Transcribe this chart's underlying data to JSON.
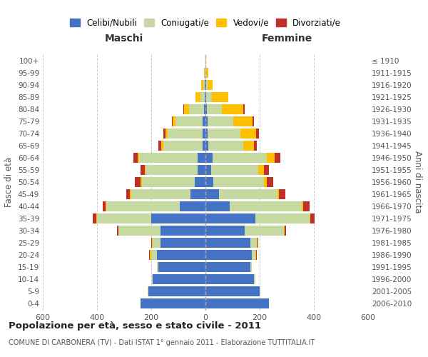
{
  "age_groups": [
    "0-4",
    "5-9",
    "10-14",
    "15-19",
    "20-24",
    "25-29",
    "30-34",
    "35-39",
    "40-44",
    "45-49",
    "50-54",
    "55-59",
    "60-64",
    "65-69",
    "70-74",
    "75-79",
    "80-84",
    "85-89",
    "90-94",
    "95-99",
    "100+"
  ],
  "birth_years": [
    "2006-2010",
    "2001-2005",
    "1996-2000",
    "1991-1995",
    "1986-1990",
    "1981-1985",
    "1976-1980",
    "1971-1975",
    "1966-1970",
    "1961-1965",
    "1956-1960",
    "1951-1955",
    "1946-1950",
    "1941-1945",
    "1936-1940",
    "1931-1935",
    "1926-1930",
    "1921-1925",
    "1916-1920",
    "1911-1915",
    "≤ 1910"
  ],
  "maschi": {
    "celibi": [
      240,
      210,
      195,
      175,
      180,
      165,
      165,
      200,
      95,
      55,
      40,
      30,
      30,
      10,
      10,
      10,
      5,
      3,
      2,
      1,
      0
    ],
    "coniugati": [
      0,
      2,
      3,
      5,
      20,
      30,
      155,
      200,
      270,
      220,
      195,
      190,
      215,
      145,
      130,
      100,
      55,
      15,
      5,
      2,
      0
    ],
    "vedovi": [
      0,
      0,
      0,
      0,
      5,
      3,
      2,
      3,
      3,
      3,
      5,
      5,
      5,
      8,
      8,
      10,
      20,
      20,
      8,
      3,
      0
    ],
    "divorziati": [
      0,
      0,
      0,
      0,
      3,
      3,
      5,
      12,
      12,
      15,
      20,
      15,
      15,
      10,
      8,
      5,
      2,
      0,
      0,
      0,
      0
    ]
  },
  "femmine": {
    "nubili": [
      235,
      200,
      180,
      165,
      170,
      165,
      145,
      185,
      90,
      50,
      30,
      20,
      25,
      10,
      8,
      8,
      5,
      3,
      2,
      1,
      0
    ],
    "coniugate": [
      0,
      2,
      3,
      5,
      15,
      25,
      145,
      200,
      265,
      215,
      185,
      175,
      200,
      130,
      120,
      95,
      55,
      20,
      5,
      2,
      0
    ],
    "vedove": [
      0,
      0,
      0,
      0,
      2,
      2,
      2,
      3,
      5,
      5,
      10,
      20,
      30,
      40,
      60,
      70,
      80,
      60,
      20,
      8,
      2
    ],
    "divorziate": [
      0,
      0,
      0,
      0,
      3,
      3,
      5,
      15,
      25,
      25,
      25,
      20,
      20,
      10,
      10,
      5,
      5,
      0,
      0,
      0,
      0
    ]
  },
  "colors": {
    "celibi": "#4472C4",
    "coniugati": "#c5d9a0",
    "vedovi": "#ffc000",
    "divorziati": "#c0302a"
  },
  "title": "Popolazione per età, sesso e stato civile - 2011",
  "subtitle": "COMUNE DI CARBONERA (TV) - Dati ISTAT 1° gennaio 2011 - Elaborazione TUTTITALIA.IT",
  "xlabel_left": "Maschi",
  "xlabel_right": "Femmine",
  "ylabel_left": "Fasce di età",
  "ylabel_right": "Anni di nascita",
  "xlim": 600,
  "legend_labels": [
    "Celibi/Nubili",
    "Coniugati/e",
    "Vedovi/e",
    "Divorziati/e"
  ],
  "background_color": "#ffffff",
  "grid_color": "#cccccc"
}
